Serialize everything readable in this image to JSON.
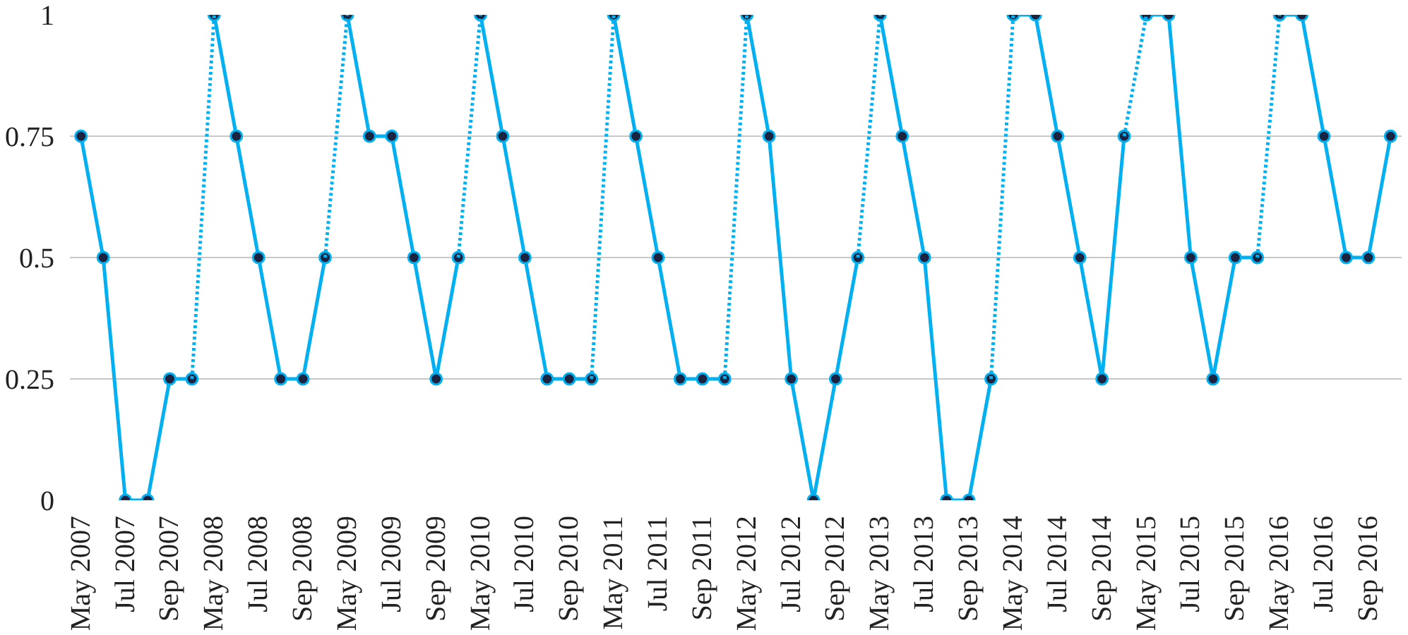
{
  "chart_data": {
    "type": "line",
    "categories": [
      "May 2007",
      null,
      "Jul 2007",
      null,
      "Sep 2007",
      null,
      "May 2008",
      null,
      "Jul 2008",
      null,
      "Sep 2008",
      null,
      "May 2009",
      null,
      "Jul 2009",
      null,
      "Sep 2009",
      null,
      "May 2010",
      null,
      "Jul 2010",
      null,
      "Sep 2010",
      null,
      "May 2011",
      null,
      "Jul 2011",
      null,
      "Sep 2011",
      null,
      "May 2012",
      null,
      "Jul 2012",
      null,
      "Sep 2012",
      null,
      "May 2013",
      null,
      "Jul 2013",
      null,
      "Sep 2013",
      null,
      "May 2014",
      null,
      "Jul 2014",
      null,
      "Sep 2014",
      null,
      "May 2015",
      null,
      "Jul 2015",
      null,
      "Sep 2015",
      null,
      "May 2016",
      null,
      "Jul 2016",
      null,
      "Sep 2016",
      null
    ],
    "series": [
      {
        "color": "#00b0f0",
        "values": [
          0.75,
          0.5,
          0,
          0,
          0.25,
          0.25,
          null,
          null,
          null,
          null,
          null,
          null,
          null,
          null,
          null,
          null,
          null,
          null,
          null,
          null,
          null,
          null,
          null,
          null,
          null,
          null,
          null,
          null,
          null,
          null,
          null,
          null,
          null,
          null,
          null,
          null,
          null,
          null,
          null,
          null,
          null,
          null,
          null,
          null,
          null,
          null,
          null,
          null,
          null,
          null,
          null,
          null,
          null,
          null,
          null,
          null,
          null,
          null,
          null,
          null
        ]
      },
      {
        "color": "#00b0f0",
        "values": [
          null,
          null,
          null,
          null,
          null,
          null,
          1,
          0.75,
          0.5,
          0.25,
          0.25,
          0.5,
          null,
          null,
          null,
          null,
          null,
          null,
          null,
          null,
          null,
          null,
          null,
          null,
          null,
          null,
          null,
          null,
          null,
          null,
          null,
          null,
          null,
          null,
          null,
          null,
          null,
          null,
          null,
          null,
          null,
          null,
          null,
          null,
          null,
          null,
          null,
          null,
          null,
          null,
          null,
          null,
          null,
          null,
          null,
          null,
          null,
          null,
          null,
          null
        ]
      },
      {
        "color": "#00b0f0",
        "values": [
          null,
          null,
          null,
          null,
          null,
          null,
          null,
          null,
          null,
          null,
          null,
          null,
          1,
          0.75,
          0.75,
          0.5,
          0.25,
          0.5,
          null,
          null,
          null,
          null,
          null,
          null,
          null,
          null,
          null,
          null,
          null,
          null,
          null,
          null,
          null,
          null,
          null,
          null,
          null,
          null,
          null,
          null,
          null,
          null,
          null,
          null,
          null,
          null,
          null,
          null,
          null,
          null,
          null,
          null,
          null,
          null,
          null,
          null,
          null,
          null,
          null,
          null
        ]
      },
      {
        "color": "#00b0f0",
        "values": [
          null,
          null,
          null,
          null,
          null,
          null,
          null,
          null,
          null,
          null,
          null,
          null,
          null,
          null,
          null,
          null,
          null,
          null,
          1,
          0.75,
          0.5,
          0.25,
          0.25,
          0.25,
          null,
          null,
          null,
          null,
          null,
          null,
          null,
          null,
          null,
          null,
          null,
          null,
          null,
          null,
          null,
          null,
          null,
          null,
          null,
          null,
          null,
          null,
          null,
          null,
          null,
          null,
          null,
          null,
          null,
          null,
          null,
          null,
          null,
          null,
          null,
          null
        ]
      },
      {
        "color": "#00b0f0",
        "values": [
          null,
          null,
          null,
          null,
          null,
          null,
          null,
          null,
          null,
          null,
          null,
          null,
          null,
          null,
          null,
          null,
          null,
          null,
          null,
          null,
          null,
          null,
          null,
          null,
          1,
          0.75,
          0.5,
          0.25,
          0.25,
          0.25,
          null,
          null,
          null,
          null,
          null,
          null,
          null,
          null,
          null,
          null,
          null,
          null,
          null,
          null,
          null,
          null,
          null,
          null,
          null,
          null,
          null,
          null,
          null,
          null,
          null,
          null,
          null,
          null,
          null,
          null
        ]
      },
      {
        "color": "#00b0f0",
        "values": [
          null,
          null,
          null,
          null,
          null,
          null,
          null,
          null,
          null,
          null,
          null,
          null,
          null,
          null,
          null,
          null,
          null,
          null,
          null,
          null,
          null,
          null,
          null,
          null,
          null,
          null,
          null,
          null,
          null,
          null,
          1,
          0.75,
          0.25,
          0,
          0.25,
          0.5,
          null,
          null,
          null,
          null,
          null,
          null,
          null,
          null,
          null,
          null,
          null,
          null,
          null,
          null,
          null,
          null,
          null,
          null,
          null,
          null,
          null,
          null,
          null,
          null
        ]
      },
      {
        "color": "#00b0f0",
        "values": [
          null,
          null,
          null,
          null,
          null,
          null,
          null,
          null,
          null,
          null,
          null,
          null,
          null,
          null,
          null,
          null,
          null,
          null,
          null,
          null,
          null,
          null,
          null,
          null,
          null,
          null,
          null,
          null,
          null,
          null,
          null,
          null,
          null,
          null,
          null,
          null,
          1,
          0.75,
          0.5,
          0,
          0,
          0.25,
          null,
          null,
          null,
          null,
          null,
          null,
          null,
          null,
          null,
          null,
          null,
          null,
          null,
          null,
          null,
          null,
          null,
          null
        ]
      },
      {
        "color": "#00b0f0",
        "values": [
          null,
          null,
          null,
          null,
          null,
          null,
          null,
          null,
          null,
          null,
          null,
          null,
          null,
          null,
          null,
          null,
          null,
          null,
          null,
          null,
          null,
          null,
          null,
          null,
          null,
          null,
          null,
          null,
          null,
          null,
          null,
          null,
          null,
          null,
          null,
          null,
          null,
          null,
          null,
          null,
          null,
          null,
          1,
          1,
          0.75,
          0.5,
          0.25,
          0.75,
          null,
          null,
          null,
          null,
          null,
          null,
          null,
          null,
          null,
          null,
          null,
          null
        ]
      },
      {
        "color": "#00b0f0",
        "values": [
          null,
          null,
          null,
          null,
          null,
          null,
          null,
          null,
          null,
          null,
          null,
          null,
          null,
          null,
          null,
          null,
          null,
          null,
          null,
          null,
          null,
          null,
          null,
          null,
          null,
          null,
          null,
          null,
          null,
          null,
          null,
          null,
          null,
          null,
          null,
          null,
          null,
          null,
          null,
          null,
          null,
          null,
          null,
          null,
          null,
          null,
          null,
          null,
          1,
          1,
          0.5,
          0.25,
          0.5,
          0.5,
          null,
          null,
          null,
          null,
          null,
          null
        ]
      },
      {
        "color": "#00b0f0",
        "values": [
          null,
          null,
          null,
          null,
          null,
          null,
          null,
          null,
          null,
          null,
          null,
          null,
          null,
          null,
          null,
          null,
          null,
          null,
          null,
          null,
          null,
          null,
          null,
          null,
          null,
          null,
          null,
          null,
          null,
          null,
          null,
          null,
          null,
          null,
          null,
          null,
          null,
          null,
          null,
          null,
          null,
          null,
          null,
          null,
          null,
          null,
          null,
          null,
          null,
          null,
          null,
          null,
          null,
          null,
          1,
          1,
          0.75,
          0.5,
          0.5,
          0.75
        ]
      },
      {
        "color": "#00b0f0",
        "line_style": "dotted",
        "marker": "none",
        "values": [
          null,
          null,
          null,
          null,
          null,
          0.25,
          1,
          null,
          null,
          null,
          null,
          0.5,
          1,
          null,
          null,
          null,
          null,
          0.5,
          1,
          null,
          null,
          null,
          null,
          0.25,
          1,
          null,
          null,
          null,
          null,
          0.25,
          1,
          null,
          null,
          null,
          null,
          0.5,
          1,
          null,
          null,
          null,
          null,
          0.25,
          1,
          null,
          null,
          null,
          null,
          0.75,
          1,
          null,
          null,
          null,
          null,
          0.5,
          1,
          null,
          null,
          null,
          null,
          null
        ]
      }
    ],
    "ylim": [
      0,
      1
    ],
    "yticks": [
      0,
      0.25,
      0.5,
      0.75,
      1
    ],
    "grid": "y",
    "marker": "circle",
    "line_style": "solid"
  }
}
